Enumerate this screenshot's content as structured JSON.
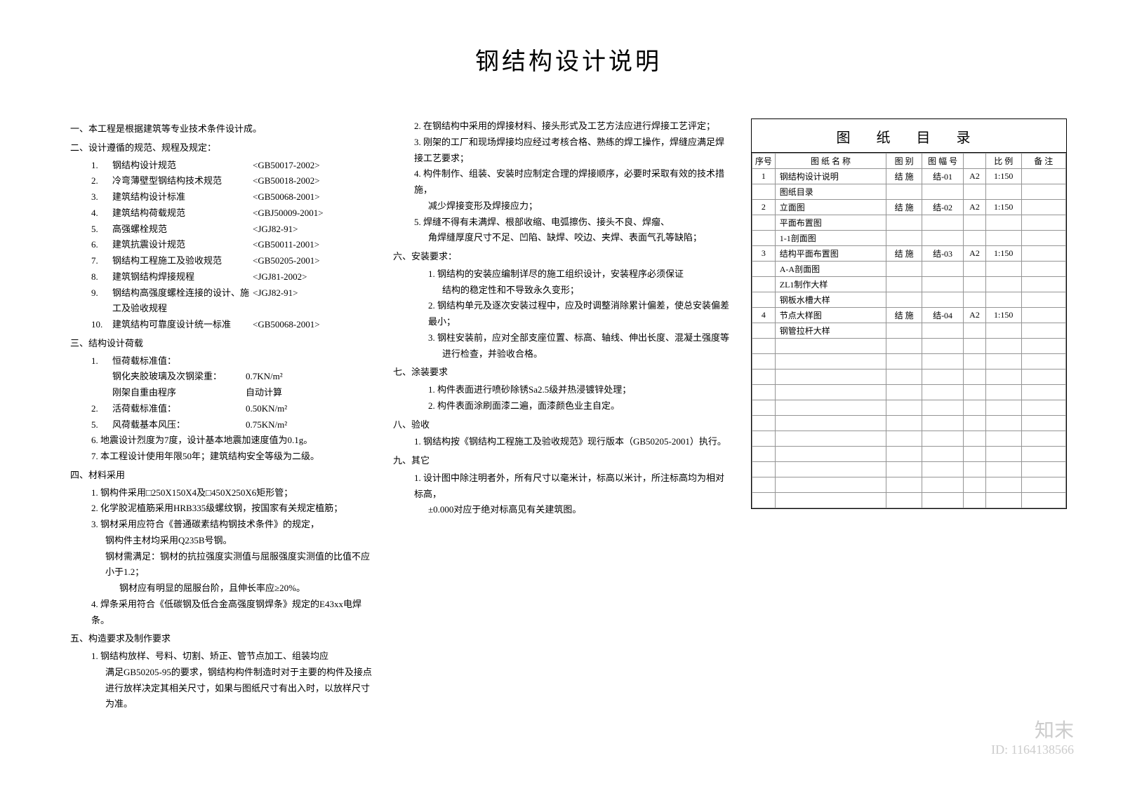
{
  "title": "钢结构设计说明",
  "sec1_head": "一、本工程是根据建筑等专业技术条件设计成。",
  "sec2_head": "二、设计遵循的规范、规程及规定：",
  "specs": [
    {
      "num": "1.",
      "name": "钢结构设计规范",
      "code": "<GB50017-2002>"
    },
    {
      "num": "2.",
      "name": "冷弯薄壁型钢结构技术规范",
      "code": "<GB50018-2002>"
    },
    {
      "num": "3.",
      "name": "建筑结构设计标准",
      "code": "<GB50068-2001>"
    },
    {
      "num": "4.",
      "name": "建筑结构荷载规范",
      "code": "<GBJ50009-2001>"
    },
    {
      "num": "5.",
      "name": "高强螺栓规范",
      "code": "<JGJ82-91>"
    },
    {
      "num": "6.",
      "name": "建筑抗震设计规范",
      "code": "<GB50011-2001>"
    },
    {
      "num": "7.",
      "name": "钢结构工程施工及验收规范",
      "code": "<GB50205-2001>"
    },
    {
      "num": "8.",
      "name": "建筑钢结构焊接规程",
      "code": "<JGJ81-2002>"
    },
    {
      "num": "9.",
      "name": "钢结构高强度螺栓连接的设计、施工及验收规程",
      "code": "<JGJ82-91>"
    },
    {
      "num": "10.",
      "name": "建筑结构可靠度设计统一标准",
      "code": "<GB50068-2001>"
    }
  ],
  "sec3_head": "三、结构设计荷载",
  "load1_num": "1.",
  "load1_name": "恒荷载标准值：",
  "load1a_name": "钢化夹胶玻璃及次钢梁重：",
  "load1a_val": "0.7KN/m²",
  "load1b_name": "刚架自重由程序",
  "load1b_val": "自动计算",
  "load2_num": "2.",
  "load2_name": "活荷载标准值：",
  "load2_val": "0.50KN/m²",
  "load5_num": "5.",
  "load5_name": "风荷载基本风压：",
  "load5_val": "0.75KN/m²",
  "load6": "6. 地震设计烈度为7度，设计基本地震加速度值为0.1g。",
  "load7": "7. 本工程设计使用年限50年；建筑结构安全等级为二级。",
  "sec4_head": "四、材料采用",
  "mat1": "1. 钢构件采用□250X150X4及□450X250X6矩形管；",
  "mat2": "2. 化学胶泥植筋采用HRB335级螺纹钢，按国家有关规定植筋；",
  "mat3": "3. 钢材采用应符合《普通碳素结构钢技术条件》的规定，",
  "mat3a": "钢构件主材均采用Q235B号钢。",
  "mat3b": "钢材需满足：钢材的抗拉强度实测值与屈服强度实测值的比值不应小于1.2；",
  "mat3c": "钢材应有明显的屈服台阶，且伸长率应≥20%。",
  "mat4": "4. 焊条采用符合《低碳钢及低合金高强度钢焊条》规定的E43xx电焊条。",
  "sec5_head": "五、构造要求及制作要求",
  "con1": "1. 钢结构放样、号料、切割、矫正、管节点加工、组装均应",
  "con1a": "满足GB50205-95的要求，钢结构构件制造时对于主要的构件及接点",
  "con1b": "进行放样决定其相关尺寸，如果与图纸尺寸有出入时，以放样尺寸为准。",
  "mid_2": "2. 在钢结构中采用的焊接材料、接头形式及工艺方法应进行焊接工艺评定；",
  "mid_3": "3. 刚架的工厂和现场焊接均应经过考核合格、熟练的焊工操作，焊缝应满足焊接工艺要求；",
  "mid_4": "4. 构件制作、组装、安装时应制定合理的焊接顺序，必要时采取有效的技术措施，",
  "mid_4a": "减少焊接变形及焊接应力；",
  "mid_5": "5. 焊缝不得有未满焊、根部收缩、电弧擦伤、接头不良、焊瘤、",
  "mid_5a": "角焊缝厚度尺寸不足、凹陷、缺焊、咬边、夹焊、表面气孔等缺陷；",
  "sec6_head": "六、安装要求：",
  "inst1": "1. 钢结构的安装应编制详尽的施工组织设计，安装程序必须保证",
  "inst1a": "结构的稳定性和不导致永久变形；",
  "inst2": "2. 钢结构单元及逐次安装过程中，应及时调整消除累计偏差，使总安装偏差最小；",
  "inst3": "3. 钢柱安装前，应对全部支座位置、标高、轴线、伸出长度、混凝土强度等",
  "inst3a": "进行检查，并验收合格。",
  "sec7_head": "七、涂装要求",
  "paint1": "1. 构件表面进行喷砂除锈Sa2.5级并热浸镀锌处理；",
  "paint2": "2. 构件表面涂刷面漆二遍，面漆颜色业主自定。",
  "sec8_head": "八、验收",
  "accept1": "1. 钢结构按《钢结构工程施工及验收规范》现行版本（GB50205-2001）执行。",
  "sec9_head": "九、其它",
  "other1": "1. 设计图中除注明者外，所有尺寸以毫米计，标高以米计，所注标高均为相对标高，",
  "other1a": "±0.000对应于绝对标高见有关建筑图。",
  "table_title": "图  纸  目  录",
  "headers": [
    "序号",
    "图 纸 名 称",
    "图 别",
    "图 幅 号",
    "",
    "比 例",
    "备 注"
  ],
  "rows": [
    {
      "seq": "1",
      "name": "钢结构设计说明",
      "type": "结 施",
      "num": "结-01",
      "size": "A2",
      "scale": "1:150",
      "note": ""
    },
    {
      "seq": "",
      "name": "图纸目录",
      "type": "",
      "num": "",
      "size": "",
      "scale": "",
      "note": ""
    },
    {
      "seq": "2",
      "name": "立面图",
      "type": "结 施",
      "num": "结-02",
      "size": "A2",
      "scale": "1:150",
      "note": ""
    },
    {
      "seq": "",
      "name": "平面布置图",
      "type": "",
      "num": "",
      "size": "",
      "scale": "",
      "note": ""
    },
    {
      "seq": "",
      "name": "1-1剖面图",
      "type": "",
      "num": "",
      "size": "",
      "scale": "",
      "note": ""
    },
    {
      "seq": "3",
      "name": "结构平面布置图",
      "type": "结 施",
      "num": "结-03",
      "size": "A2",
      "scale": "1:150",
      "note": ""
    },
    {
      "seq": "",
      "name": "A-A剖面图",
      "type": "",
      "num": "",
      "size": "",
      "scale": "",
      "note": ""
    },
    {
      "seq": "",
      "name": "ZL1制作大样",
      "type": "",
      "num": "",
      "size": "",
      "scale": "",
      "note": ""
    },
    {
      "seq": "",
      "name": "钢板水槽大样",
      "type": "",
      "num": "",
      "size": "",
      "scale": "",
      "note": ""
    },
    {
      "seq": "4",
      "name": "节点大样图",
      "type": "结 施",
      "num": "结-04",
      "size": "A2",
      "scale": "1:150",
      "note": ""
    },
    {
      "seq": "",
      "name": "钢管拉杆大样",
      "type": "",
      "num": "",
      "size": "",
      "scale": "",
      "note": ""
    },
    {
      "seq": "",
      "name": "",
      "type": "",
      "num": "",
      "size": "",
      "scale": "",
      "note": ""
    },
    {
      "seq": "",
      "name": "",
      "type": "",
      "num": "",
      "size": "",
      "scale": "",
      "note": ""
    },
    {
      "seq": "",
      "name": "",
      "type": "",
      "num": "",
      "size": "",
      "scale": "",
      "note": ""
    },
    {
      "seq": "",
      "name": "",
      "type": "",
      "num": "",
      "size": "",
      "scale": "",
      "note": ""
    },
    {
      "seq": "",
      "name": "",
      "type": "",
      "num": "",
      "size": "",
      "scale": "",
      "note": ""
    },
    {
      "seq": "",
      "name": "",
      "type": "",
      "num": "",
      "size": "",
      "scale": "",
      "note": ""
    },
    {
      "seq": "",
      "name": "",
      "type": "",
      "num": "",
      "size": "",
      "scale": "",
      "note": ""
    },
    {
      "seq": "",
      "name": "",
      "type": "",
      "num": "",
      "size": "",
      "scale": "",
      "note": ""
    },
    {
      "seq": "",
      "name": "",
      "type": "",
      "num": "",
      "size": "",
      "scale": "",
      "note": ""
    },
    {
      "seq": "",
      "name": "",
      "type": "",
      "num": "",
      "size": "",
      "scale": "",
      "note": ""
    },
    {
      "seq": "",
      "name": "",
      "type": "",
      "num": "",
      "size": "",
      "scale": "",
      "note": ""
    }
  ],
  "wm_brand": "知末",
  "wm_id": "ID: 1164138566"
}
